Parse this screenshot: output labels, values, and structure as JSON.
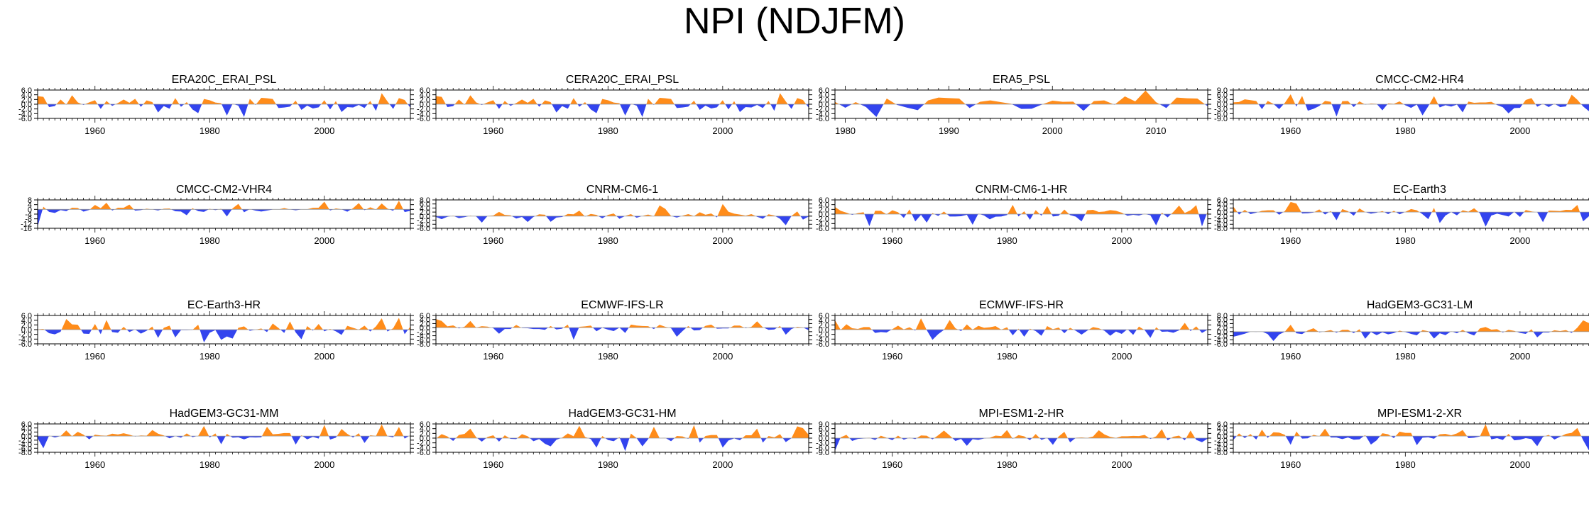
{
  "title": "NPI (NDJFM)",
  "colors": {
    "positive": "#ff8c1a",
    "negative": "#3344ee",
    "axis": "#000000"
  },
  "charts": [
    {
      "title": "ERA20C_ERAI_PSL",
      "xlim": [
        1950,
        2015
      ],
      "x_ticks": [
        1960,
        1980,
        2000
      ],
      "ylim": [
        -6,
        6
      ],
      "y_ticks": [
        -6,
        -4,
        -2,
        0,
        2,
        4,
        6
      ],
      "y_labels": [
        "-6.0",
        "-4.0",
        "-2.0",
        "0.0",
        "2.0",
        "4.0",
        "6.0"
      ],
      "pattern": "A"
    },
    {
      "title": "CERA20C_ERAI_PSL",
      "xlim": [
        1950,
        2015
      ],
      "x_ticks": [
        1960,
        1980,
        2000
      ],
      "ylim": [
        -6,
        6
      ],
      "y_ticks": [
        -6,
        -4,
        -2,
        0,
        2,
        4,
        6
      ],
      "y_labels": [
        "-6.0",
        "-4.0",
        "-2.0",
        "0.0",
        "2.0",
        "4.0",
        "6.0"
      ],
      "pattern": "A"
    },
    {
      "title": "ERA5_PSL",
      "xlim": [
        1979,
        2015
      ],
      "x_ticks": [
        1980,
        1990,
        2000,
        2010
      ],
      "ylim": [
        -6,
        6
      ],
      "y_ticks": [
        -6,
        -4,
        -2,
        0,
        2,
        4,
        6
      ],
      "y_labels": [
        "-6.0",
        "-4.0",
        "-2.0",
        "0.0",
        "2.0",
        "4.0",
        "6.0"
      ],
      "pattern": "E5"
    },
    {
      "title": "CMCC-CM2-HR4",
      "xlim": [
        1950,
        2015
      ],
      "x_ticks": [
        1960,
        1980,
        2000
      ],
      "ylim": [
        -9,
        9
      ],
      "y_ticks": [
        -9,
        -6,
        -3,
        0,
        3,
        6,
        9
      ],
      "y_labels": [
        "-9.0",
        "-6.0",
        "-3.0",
        "0.0",
        "3.0",
        "6.0",
        "9.0"
      ],
      "pattern": "B"
    },
    {
      "title": "CMCC-CM2-VHR4",
      "xlim": [
        1950,
        2015
      ],
      "x_ticks": [
        1960,
        1980,
        2000
      ],
      "ylim": [
        -16,
        8
      ],
      "y_ticks": [
        -16,
        -12,
        -8,
        -4,
        0,
        4,
        8
      ],
      "y_labels": [
        "-16",
        "-12",
        "-8",
        "-4",
        "0",
        "4",
        "8"
      ],
      "pattern": "C"
    },
    {
      "title": "CNRM-CM6-1",
      "xlim": [
        1950,
        2015
      ],
      "x_ticks": [
        1960,
        1980,
        2000
      ],
      "ylim": [
        -6,
        8
      ],
      "y_ticks": [
        -6,
        -4,
        -2,
        0,
        2,
        4,
        6,
        8
      ],
      "y_labels": [
        "-6.0",
        "-4.0",
        "-2.0",
        "0.0",
        "2.0",
        "4.0",
        "6.0",
        "8.0"
      ],
      "pattern": "D"
    },
    {
      "title": "CNRM-CM6-1-HR",
      "xlim": [
        1950,
        2015
      ],
      "x_ticks": [
        1960,
        1980,
        2000
      ],
      "ylim": [
        -6,
        6
      ],
      "y_ticks": [
        -6,
        -4,
        -2,
        0,
        2,
        4,
        6
      ],
      "y_labels": [
        "-6.0",
        "-4.0",
        "-2.0",
        "0.0",
        "2.0",
        "4.0",
        "6.0"
      ],
      "pattern": "F"
    },
    {
      "title": "EC-Earth3",
      "xlim": [
        1950,
        2015
      ],
      "x_ticks": [
        1960,
        1980,
        2000
      ],
      "ylim": [
        -8,
        6
      ],
      "y_ticks": [
        -8,
        -6,
        -4,
        -2,
        0,
        2,
        4,
        6
      ],
      "y_labels": [
        "-8.0",
        "-6.0",
        "-4.0",
        "-2.0",
        "0.0",
        "2.0",
        "4.0",
        "6.0"
      ],
      "pattern": "G"
    },
    {
      "title": "EC-Earth3-HR",
      "xlim": [
        1950,
        2015
      ],
      "x_ticks": [
        1960,
        1980,
        2000
      ],
      "ylim": [
        -6,
        6
      ],
      "y_ticks": [
        -6,
        -4,
        -2,
        0,
        2,
        4,
        6
      ],
      "y_labels": [
        "-6.0",
        "-4.0",
        "-2.0",
        "0.0",
        "2.0",
        "4.0",
        "6.0"
      ],
      "pattern": "H"
    },
    {
      "title": "ECMWF-IFS-LR",
      "xlim": [
        1950,
        2015
      ],
      "x_ticks": [
        1960,
        1980,
        2000
      ],
      "ylim": [
        -8,
        6
      ],
      "y_ticks": [
        -8,
        -6,
        -4,
        -2,
        0,
        2,
        4,
        6
      ],
      "y_labels": [
        "-8.0",
        "-6.0",
        "-4.0",
        "-2.0",
        "0.0",
        "2.0",
        "4.0",
        "6.0"
      ],
      "pattern": "I"
    },
    {
      "title": "ECMWF-IFS-HR",
      "xlim": [
        1950,
        2015
      ],
      "x_ticks": [
        1960,
        1980,
        2000
      ],
      "ylim": [
        -6,
        6
      ],
      "y_ticks": [
        -6,
        -4,
        -2,
        0,
        2,
        4,
        6
      ],
      "y_labels": [
        "-6.0",
        "-4.0",
        "-2.0",
        "0.0",
        "2.0",
        "4.0",
        "6.0"
      ],
      "pattern": "J"
    },
    {
      "title": "HadGEM3-GC31-LM",
      "xlim": [
        1950,
        2015
      ],
      "x_ticks": [
        1960,
        1980,
        2000
      ],
      "ylim": [
        -6,
        8
      ],
      "y_ticks": [
        -6,
        -4,
        -2,
        0,
        2,
        4,
        6,
        8
      ],
      "y_labels": [
        "-6.0",
        "-4.0",
        "-2.0",
        "0.0",
        "2.0",
        "4.0",
        "6.0",
        "8.0"
      ],
      "pattern": "K"
    },
    {
      "title": "HadGEM3-GC31-MM",
      "xlim": [
        1950,
        2015
      ],
      "x_ticks": [
        1960,
        1980,
        2000
      ],
      "ylim": [
        -8,
        6
      ],
      "y_ticks": [
        -8,
        -6,
        -4,
        -2,
        0,
        2,
        4,
        6
      ],
      "y_labels": [
        "-8.0",
        "-6.0",
        "-4.0",
        "-2.0",
        "0.0",
        "2.0",
        "4.0",
        "6.0"
      ],
      "pattern": "L"
    },
    {
      "title": "HadGEM3-GC31-HM",
      "xlim": [
        1950,
        2015
      ],
      "x_ticks": [
        1960,
        1980,
        2000
      ],
      "ylim": [
        -6,
        6
      ],
      "y_ticks": [
        -6,
        -4,
        -2,
        0,
        2,
        4,
        6
      ],
      "y_labels": [
        "-6.0",
        "-4.0",
        "-2.0",
        "0.0",
        "2.0",
        "4.0",
        "6.0"
      ],
      "pattern": "M"
    },
    {
      "title": "MPI-ESM1-2-HR",
      "xlim": [
        1950,
        2015
      ],
      "x_ticks": [
        1960,
        1980,
        2000
      ],
      "ylim": [
        -9,
        9
      ],
      "y_ticks": [
        -9,
        -6,
        -3,
        0,
        3,
        6,
        9
      ],
      "y_labels": [
        "-9.0",
        "-6.0",
        "-3.0",
        "0.0",
        "3.0",
        "6.0",
        "9.0"
      ],
      "pattern": "N"
    },
    {
      "title": "MPI-ESM1-2-XR",
      "xlim": [
        1950,
        2015
      ],
      "x_ticks": [
        1960,
        1980,
        2000
      ],
      "ylim": [
        -8,
        6
      ],
      "y_ticks": [
        -8,
        -6,
        -4,
        -2,
        0,
        2,
        4,
        6
      ],
      "y_labels": [
        "-8.0",
        "-6.0",
        "-4.0",
        "-2.0",
        "0.0",
        "2.0",
        "4.0",
        "6.0"
      ],
      "pattern": "O"
    }
  ],
  "chart_data": []
}
